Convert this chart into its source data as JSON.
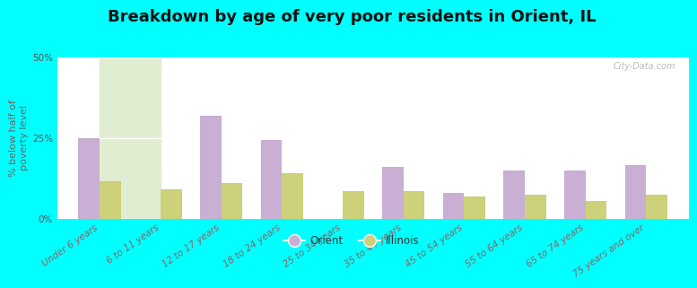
{
  "title": "Breakdown by age of very poor residents in Orient, IL",
  "ylabel": "% below half of\npoverty level",
  "categories": [
    "Under 6 years",
    "6 to 11 years",
    "12 to 17 years",
    "18 to 24 years",
    "25 to 34 years",
    "35 to 44 years",
    "45 to 54 years",
    "55 to 64 years",
    "65 to 74 years",
    "75 years and over"
  ],
  "orient_values": [
    25.0,
    0.0,
    32.0,
    24.5,
    0.0,
    16.0,
    8.0,
    15.0,
    15.0,
    16.5
  ],
  "illinois_values": [
    11.5,
    9.0,
    11.0,
    14.0,
    8.5,
    8.5,
    7.0,
    7.5,
    5.5,
    7.5
  ],
  "orient_color": "#c9afd4",
  "illinois_color": "#ccd17a",
  "outer_bg": "#00ffff",
  "ylim": [
    0,
    50
  ],
  "yticks": [
    0,
    25,
    50
  ],
  "ytick_labels": [
    "0%",
    "25%",
    "50%"
  ],
  "bar_width": 0.35,
  "title_fontsize": 13,
  "axis_fontsize": 8,
  "tick_fontsize": 7.5,
  "legend_labels": [
    "Orient",
    "Illinois"
  ],
  "watermark": "City-Data.com"
}
